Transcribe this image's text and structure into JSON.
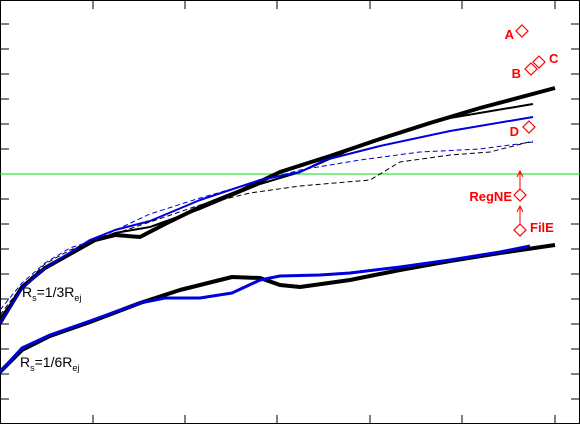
{
  "chart_data": {
    "type": "line",
    "xlim": [
      0,
      580
    ],
    "ylim": [
      0,
      424
    ],
    "xticks": [
      93,
      185,
      277,
      370,
      462,
      555
    ],
    "yticks": [
      25,
      50,
      75,
      100,
      125,
      150,
      175,
      200,
      225,
      250,
      275,
      300,
      325,
      350,
      375,
      400
    ],
    "hline": {
      "value": 250,
      "color": "#00dd00"
    },
    "series": [
      {
        "color": "#000000",
        "width": 4,
        "dash": false,
        "x": [
          0,
          22,
          45,
          70,
          95,
          115,
          140,
          165,
          200,
          240,
          280,
          330,
          380,
          430,
          480,
          555
        ],
        "values": [
          101,
          137,
          156,
          170,
          184,
          189,
          187,
          200,
          217,
          233,
          252,
          268,
          285,
          301,
          316,
          336
        ]
      },
      {
        "color": "#000000",
        "width": 2,
        "dash": false,
        "x": [
          0,
          22,
          45,
          90,
          115,
          150,
          200,
          260,
          300,
          350,
          400,
          450,
          533
        ],
        "values": [
          106,
          135,
          156,
          181,
          191,
          197,
          215,
          240,
          252,
          274,
          292,
          306,
          320
        ]
      },
      {
        "color": "#0000dd",
        "width": 2,
        "dash": false,
        "x": [
          0,
          22,
          45,
          90,
          115,
          150,
          200,
          260,
          300,
          325,
          380,
          450,
          533
        ],
        "values": [
          101,
          136,
          156,
          184,
          194,
          203,
          224,
          244,
          252,
          264,
          278,
          293,
          307
        ]
      },
      {
        "color": "#0000dd",
        "width": 1,
        "dash": true,
        "x": [
          0,
          22,
          45,
          70,
          95,
          120,
          150,
          200,
          260,
          300,
          360,
          420,
          480,
          533
        ],
        "values": [
          114,
          141,
          161,
          176,
          184,
          196,
          210,
          226,
          243,
          254,
          264,
          272,
          275,
          282
        ]
      },
      {
        "color": "#000000",
        "width": 1,
        "dash": true,
        "x": [
          0,
          22,
          45,
          70,
          95,
          120,
          150,
          200,
          250,
          300,
          370,
          400,
          450,
          490,
          533
        ],
        "values": [
          109,
          138,
          160,
          174,
          183,
          192,
          202,
          219,
          231,
          238,
          244,
          262,
          269,
          272,
          283
        ]
      },
      {
        "color": "#000000",
        "width": 4,
        "dash": false,
        "x": [
          0,
          22,
          50,
          90,
          140,
          180,
          232,
          260,
          280,
          300,
          350,
          400,
          450,
          500,
          555
        ],
        "values": [
          52,
          74,
          88,
          102,
          121,
          134,
          147,
          146,
          139,
          137,
          144,
          154,
          163,
          171,
          179
        ]
      },
      {
        "color": "#0000dd",
        "width": 3,
        "dash": false,
        "x": [
          0,
          22,
          50,
          90,
          140,
          165,
          200,
          232,
          260,
          280,
          320,
          350,
          400,
          450,
          500,
          530
        ],
        "values": [
          52,
          76,
          89,
          103,
          121,
          126,
          126,
          131,
          144,
          148,
          149,
          151,
          157,
          164,
          172,
          178
        ]
      }
    ],
    "points": {
      "color": "#ff0000",
      "labels": [
        "A",
        "B",
        "C",
        "D",
        "RegNE",
        "FilE"
      ],
      "x": [
        522,
        531,
        539,
        529,
        520,
        520
      ],
      "values": [
        393,
        355,
        362,
        297,
        229,
        194
      ],
      "arrow": [
        false,
        false,
        false,
        false,
        true,
        true
      ]
    },
    "annotations": [
      {
        "x": 22,
        "y": 127,
        "parts": [
          {
            "text": "R"
          },
          {
            "text": "s",
            "sub": true
          },
          {
            "text": "=1/3R"
          },
          {
            "text": "ej",
            "sub": true
          }
        ]
      },
      {
        "x": 20,
        "y": 57,
        "parts": [
          {
            "text": "R"
          },
          {
            "text": "s",
            "sub": true
          },
          {
            "text": "=1/6R"
          },
          {
            "text": "ej",
            "sub": true
          }
        ]
      }
    ]
  }
}
